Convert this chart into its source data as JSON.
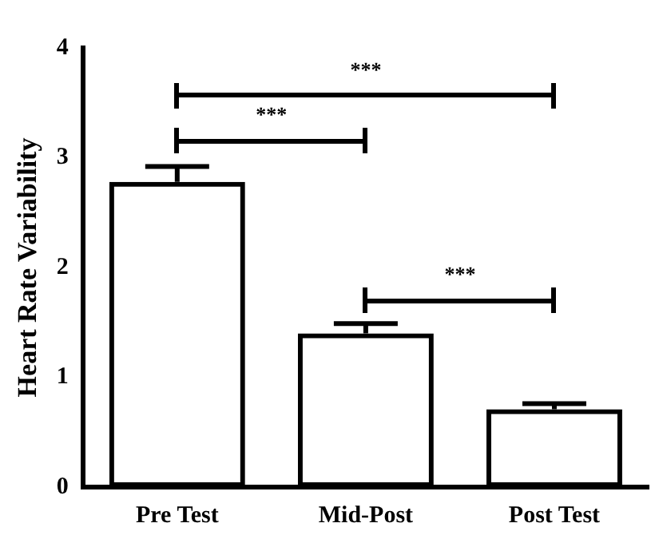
{
  "chart_data": {
    "type": "bar",
    "ylabel": "Heart Rate Variability",
    "categories": [
      "Pre Test",
      "Mid-Post",
      "Post Test"
    ],
    "values": [
      2.78,
      1.4,
      0.71
    ],
    "errors": [
      [
        2.78,
        2.92
      ],
      [
        1.4,
        1.49
      ],
      [
        0.71,
        0.76
      ]
    ],
    "color": "#000000",
    "ylim": [
      0,
      4
    ],
    "yticks": [
      0,
      1,
      2,
      3,
      4
    ],
    "grid": false,
    "legend": false,
    "annotations": [
      "***",
      "***",
      "***"
    ]
  }
}
